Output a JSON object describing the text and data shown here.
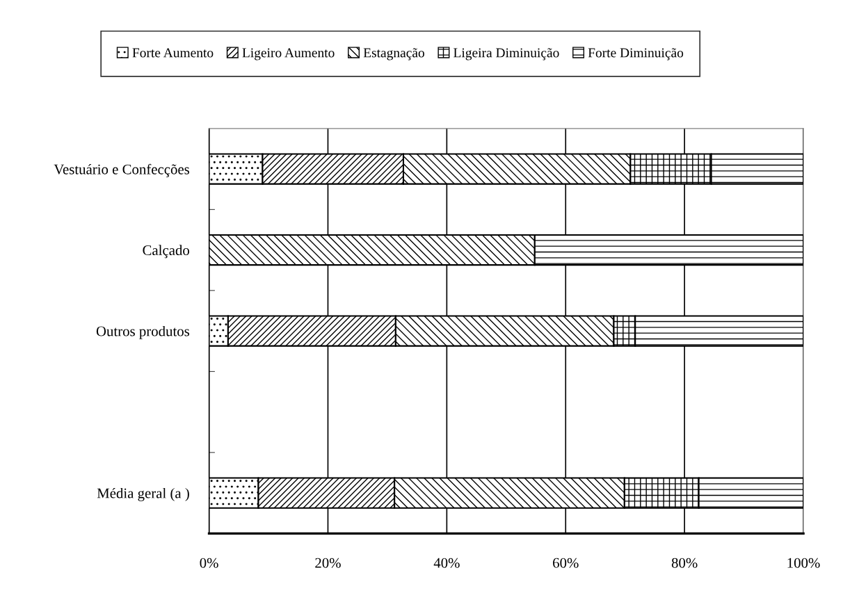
{
  "chart_data": {
    "type": "bar",
    "orientation": "horizontal",
    "stacked": true,
    "categories": [
      "Vestuário e Confecções",
      "Calçado",
      "Outros produtos",
      null,
      "Média geral (a )"
    ],
    "series": [
      {
        "name": "Forte Aumento",
        "color": "#000000",
        "values": [
          9.0,
          0,
          3.2,
          null,
          8.3
        ]
      },
      {
        "name": "Ligeiro Aumento",
        "color": "#000000",
        "values": [
          23.7,
          0,
          28.2,
          null,
          22.9
        ]
      },
      {
        "name": "Estagnação",
        "color": "#000000",
        "values": [
          38.2,
          54.8,
          36.7,
          null,
          38.7
        ]
      },
      {
        "name": "Ligeira Diminuição",
        "color": "#000000",
        "values": [
          13.6,
          0,
          3.6,
          null,
          12.5
        ]
      },
      {
        "name": "Forte Diminuição",
        "color": "#000000",
        "values": [
          15.5,
          45.2,
          28.3,
          null,
          17.6
        ]
      }
    ],
    "xlim": [
      0,
      100
    ],
    "xticks": [
      {
        "value": 0,
        "label": "0%"
      },
      {
        "value": 20,
        "label": "20%"
      },
      {
        "value": 40,
        "label": "40%"
      },
      {
        "value": 60,
        "label": "60%"
      },
      {
        "value": 80,
        "label": "80%"
      },
      {
        "value": 100,
        "label": "100%"
      }
    ],
    "grid": "x",
    "legend": "top"
  }
}
